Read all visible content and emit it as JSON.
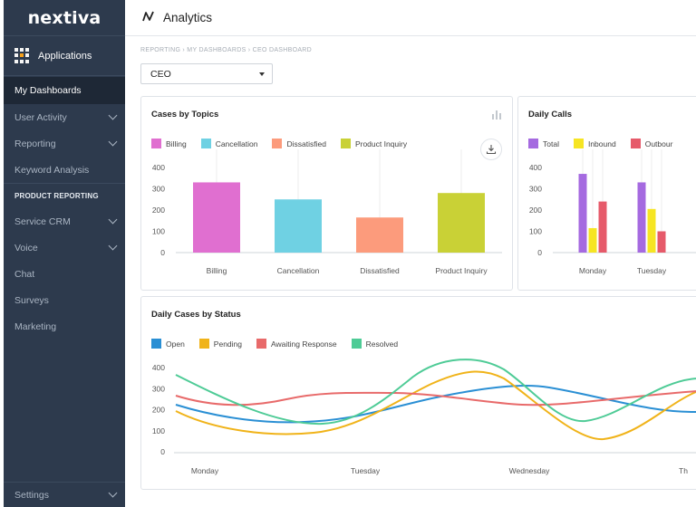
{
  "brand": {
    "logo": "nextiva"
  },
  "sidebar": {
    "apps_label": "Applications",
    "items": [
      {
        "label": "My Dashboards",
        "active": true,
        "chevron": false
      },
      {
        "label": "User Activity",
        "chevron": true
      },
      {
        "label": "Reporting",
        "chevron": true
      },
      {
        "label": "Keyword Analysis",
        "chevron": false
      }
    ],
    "section_label": "PRODUCT REPORTING",
    "product_items": [
      {
        "label": "Service CRM",
        "chevron": true
      },
      {
        "label": "Voice",
        "chevron": true
      },
      {
        "label": "Chat",
        "chevron": false
      },
      {
        "label": "Surveys",
        "chevron": false
      },
      {
        "label": "Marketing",
        "chevron": false
      }
    ],
    "settings_label": "Settings"
  },
  "header": {
    "title": "Analytics",
    "icon": "analytics-icon"
  },
  "breadcrumb": "REPORTING › MY DASHBOARDS › CEO DASHBOARD",
  "dashboard_select": {
    "value": "CEO"
  },
  "colors": {
    "billing": "#e06fd0",
    "cancellation": "#6fd1e3",
    "dissatisfied": "#fc9b7c",
    "product_inquiry": "#c9d136",
    "total": "#a56ae0",
    "inbound": "#f6e523",
    "outbound": "#e65a6a",
    "open": "#2a8fd4",
    "pending": "#f0b319",
    "awaiting": "#e86a6a",
    "resolved": "#4ecb96"
  },
  "cases_by_topics": {
    "title": "Cases by Topics",
    "legend": [
      "Billing",
      "Cancellation",
      "Dissatisfied",
      "Product Inquiry"
    ]
  },
  "daily_calls": {
    "title": "Daily Calls",
    "legend": [
      "Total",
      "Inbound",
      "Outbour"
    ]
  },
  "daily_cases_by_status": {
    "title": "Daily Cases by Status",
    "legend": [
      "Open",
      "Pending",
      "Awaiting Response",
      "Resolved"
    ]
  },
  "chart_data": [
    {
      "type": "bar",
      "title": "Cases by Topics",
      "categories": [
        "Billing",
        "Cancellation",
        "Dissatisfied",
        "Product Inquiry"
      ],
      "values": [
        330,
        250,
        165,
        280
      ],
      "yticks": [
        "400",
        "300",
        "200",
        "100",
        "0"
      ],
      "ylim": [
        0,
        400
      ]
    },
    {
      "type": "bar",
      "title": "Daily Calls",
      "categories": [
        "Monday",
        "Tuesday"
      ],
      "series": [
        {
          "name": "Total",
          "values": [
            370,
            330
          ]
        },
        {
          "name": "Inbound",
          "values": [
            115,
            205
          ]
        },
        {
          "name": "Outbour",
          "values": [
            240,
            100
          ]
        }
      ],
      "yticks": [
        "400",
        "300",
        "200",
        "100",
        "0"
      ],
      "ylim": [
        0,
        400
      ]
    },
    {
      "type": "line",
      "title": "Daily Cases by Status",
      "categories": [
        "Monday",
        "Tuesday",
        "Wednesday",
        "Th"
      ],
      "yticks": [
        "400",
        "300",
        "200",
        "100",
        "0"
      ],
      "ylim": [
        0,
        400
      ]
    }
  ]
}
